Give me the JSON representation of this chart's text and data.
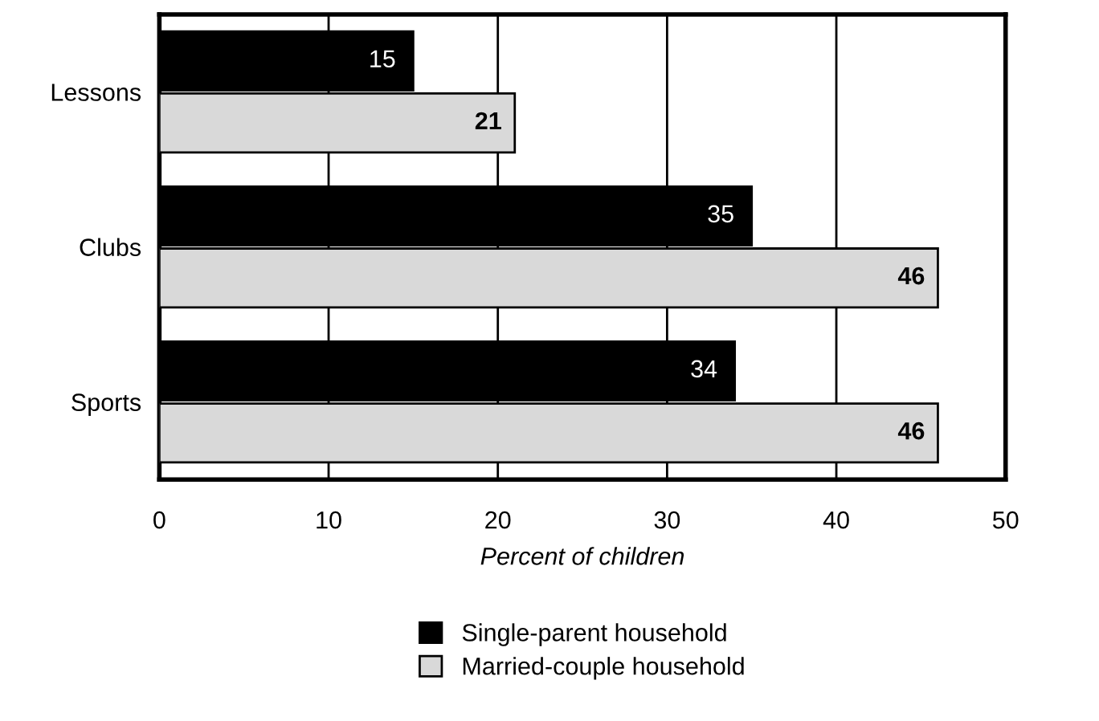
{
  "chart_data": {
    "type": "bar",
    "orientation": "horizontal",
    "categories": [
      "Lessons",
      "Clubs",
      "Sports"
    ],
    "series": [
      {
        "name": "Single-parent household",
        "color": "#000000",
        "values": [
          15,
          35,
          34
        ]
      },
      {
        "name": "Married-couple household",
        "color": "#d9d9d9",
        "values": [
          21,
          46,
          46
        ]
      }
    ],
    "xlabel": "Percent of children",
    "xlim": [
      0,
      50
    ],
    "xticks": [
      0,
      10,
      20,
      30,
      40,
      50
    ],
    "grid": "x",
    "legend": "bottom",
    "data_labels": true
  }
}
